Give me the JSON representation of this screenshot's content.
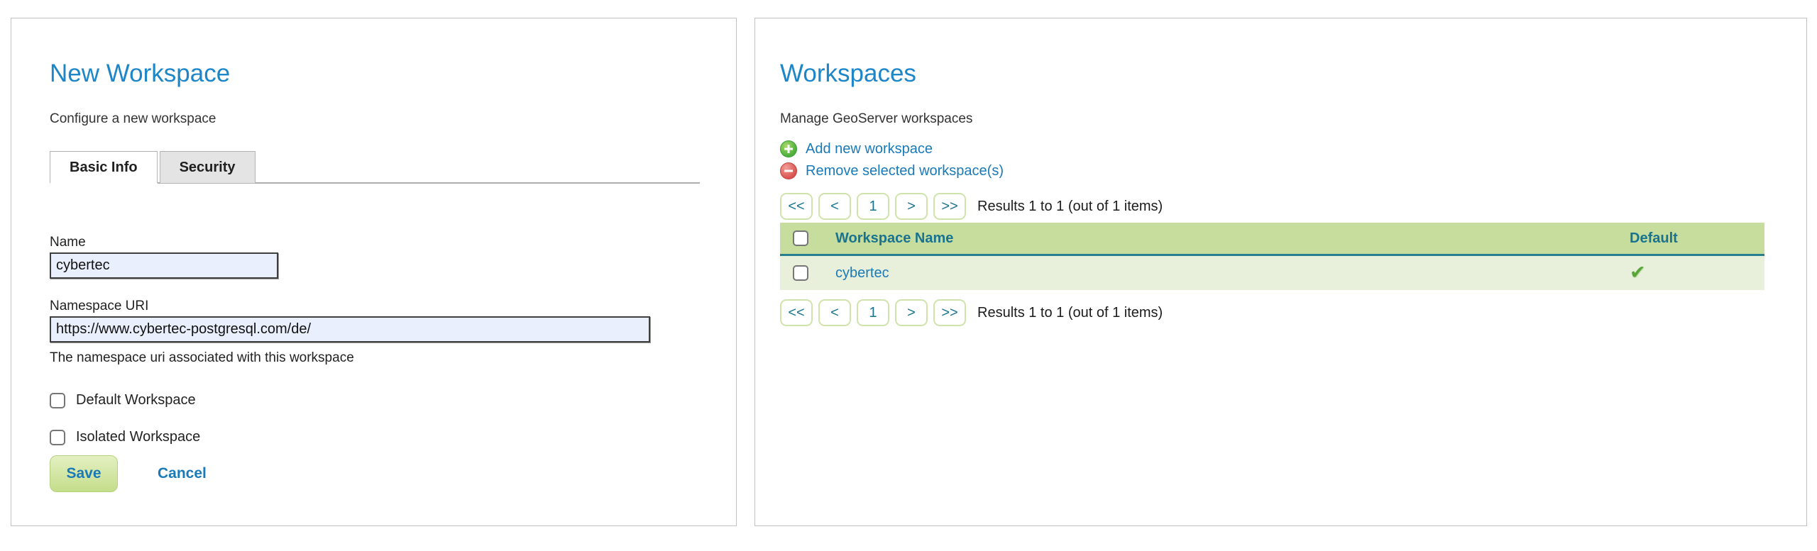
{
  "left_panel": {
    "title": "New Workspace",
    "subtitle": "Configure a new workspace",
    "tabs": [
      {
        "label": "Basic Info",
        "active": true
      },
      {
        "label": "Security",
        "active": false
      }
    ],
    "fields": {
      "name": {
        "label": "Name",
        "value": "cybertec"
      },
      "namespace": {
        "label": "Namespace URI",
        "value": "https://www.cybertec-postgresql.com/de/",
        "help": "The namespace uri associated with this workspace"
      }
    },
    "checkboxes": [
      {
        "label": "Default Workspace",
        "checked": false
      },
      {
        "label": "Isolated Workspace",
        "checked": false
      }
    ],
    "buttons": {
      "save": "Save",
      "cancel": "Cancel"
    }
  },
  "right_panel": {
    "title": "Workspaces",
    "subtitle": "Manage GeoServer workspaces",
    "actions": [
      {
        "icon": "plus-circle-icon",
        "label": "Add new workspace"
      },
      {
        "icon": "minus-circle-icon",
        "label": "Remove selected workspace(s)"
      }
    ],
    "pagination": {
      "first": "<<",
      "prev": "<",
      "page": "1",
      "next": ">",
      "last": ">>",
      "results_text": "Results 1 to 1 (out of 1 items)"
    },
    "table": {
      "columns": {
        "name": "Workspace Name",
        "default": "Default"
      },
      "rows": [
        {
          "name": "cybertec",
          "is_default": true
        }
      ],
      "check_glyph": "✔"
    }
  },
  "colors": {
    "title_blue": "#1d86c8",
    "link_blue": "#1a7ab8",
    "table_teal": "#19738f",
    "header_green": "#c7dd9e",
    "row_green": "#e8efda",
    "divider_teal": "#27808f",
    "save_button_green": "#c4dd8a",
    "input_background": "#e9effc"
  }
}
